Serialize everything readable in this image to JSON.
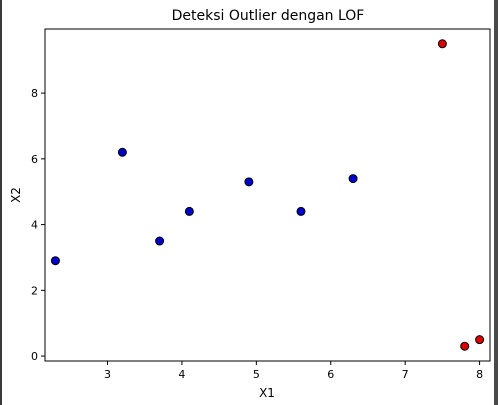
{
  "chart_data": {
    "type": "scatter",
    "title": "Deteksi Outlier dengan LOF",
    "xlabel": "X1",
    "ylabel": "X2",
    "xlim": [
      2.16,
      8.14
    ],
    "ylim": [
      -0.15,
      9.95
    ],
    "xticks": [
      3,
      4,
      5,
      6,
      7,
      8
    ],
    "yticks": [
      0,
      2,
      4,
      6,
      8
    ],
    "grid": false,
    "colors": {
      "inlier": "#0000cc",
      "outlier": "#dd0000",
      "edge": "#000000"
    },
    "series": [
      {
        "class": "inlier",
        "points": [
          {
            "x": 2.3,
            "y": 2.9
          },
          {
            "x": 3.2,
            "y": 6.2
          },
          {
            "x": 3.7,
            "y": 3.5
          },
          {
            "x": 4.1,
            "y": 4.4
          },
          {
            "x": 4.9,
            "y": 5.3
          },
          {
            "x": 5.6,
            "y": 4.4
          },
          {
            "x": 6.3,
            "y": 5.4
          }
        ]
      },
      {
        "class": "outlier",
        "points": [
          {
            "x": 7.5,
            "y": 9.5
          },
          {
            "x": 7.8,
            "y": 0.3
          },
          {
            "x": 8.0,
            "y": 0.5
          }
        ]
      }
    ]
  }
}
